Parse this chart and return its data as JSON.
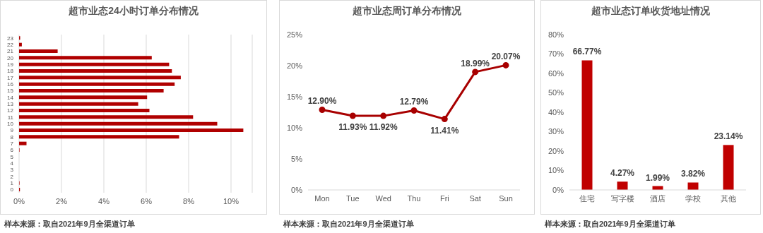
{
  "chart_data": [
    {
      "type": "bar",
      "orientation": "horizontal",
      "title": "超市业态24小时订单分布情况",
      "categories": [
        "23",
        "22",
        "21",
        "20",
        "19",
        "18",
        "17",
        "16",
        "15",
        "14",
        "13",
        "12",
        "11",
        "10",
        "9",
        "8",
        "7",
        "6",
        "5",
        "4",
        "3",
        "2",
        "1",
        "0"
      ],
      "values": [
        0.05,
        0.13,
        1.82,
        6.26,
        7.08,
        7.21,
        7.63,
        7.34,
        6.82,
        6.04,
        5.62,
        6.15,
        8.21,
        9.35,
        10.58,
        7.55,
        0.35,
        0.02,
        0,
        0,
        0,
        0,
        0.02,
        0.04
      ],
      "color": "#b00000",
      "xlim": [
        0,
        11
      ],
      "xticks": [
        {
          "value": 0,
          "label": "0%"
        },
        {
          "value": 2,
          "label": "2%"
        },
        {
          "value": 4,
          "label": "4%"
        },
        {
          "value": 6,
          "label": "6%"
        },
        {
          "value": 8,
          "label": "8%"
        },
        {
          "value": 10,
          "label": "10%"
        }
      ],
      "grid": "x",
      "annotations": [
        "样本来源：取自2021年9月全渠道订单"
      ]
    },
    {
      "type": "line",
      "title": "超市业态周订单分布情况",
      "categories": [
        "Mon",
        "Tue",
        "Wed",
        "Thu",
        "Fri",
        "Sat",
        "Sun"
      ],
      "values": [
        12.9,
        11.93,
        11.92,
        12.79,
        11.41,
        18.99,
        20.07
      ],
      "color": "#a80000",
      "marker": "circle",
      "value_labels": [
        "12.90%",
        "11.93%",
        "11.92%",
        "12.79%",
        "11.41%",
        "18.99%",
        "20.07%"
      ],
      "ylim": [
        0,
        25
      ],
      "yticks": [
        {
          "value": 0,
          "label": "0%"
        },
        {
          "value": 5,
          "label": "5%"
        },
        {
          "value": 10,
          "label": "10%"
        },
        {
          "value": 15,
          "label": "15%"
        },
        {
          "value": 20,
          "label": "20%"
        },
        {
          "value": 25,
          "label": "25%"
        }
      ],
      "annotations": [
        "样本来源：取自2021年9月全渠道订单"
      ]
    },
    {
      "type": "bar",
      "title": "超市业态订单收货地址情况",
      "categories": [
        "住宅",
        "写字楼",
        "酒店",
        "学校",
        "其他"
      ],
      "values": [
        66.77,
        4.27,
        1.99,
        3.82,
        23.14
      ],
      "color": "#c00000",
      "value_labels": [
        "66.77%",
        "4.27%",
        "1.99%",
        "3.82%",
        "23.14%"
      ],
      "ylim": [
        0,
        80
      ],
      "yticks": [
        {
          "value": 0,
          "label": "0%"
        },
        {
          "value": 10,
          "label": "10%"
        },
        {
          "value": 20,
          "label": "20%"
        },
        {
          "value": 30,
          "label": "30%"
        },
        {
          "value": 40,
          "label": "40%"
        },
        {
          "value": 50,
          "label": "50%"
        },
        {
          "value": 60,
          "label": "60%"
        },
        {
          "value": 70,
          "label": "70%"
        },
        {
          "value": 80,
          "label": "80%"
        }
      ],
      "annotations": [
        "样本来源：取自2021年9月全渠道订单"
      ]
    }
  ]
}
